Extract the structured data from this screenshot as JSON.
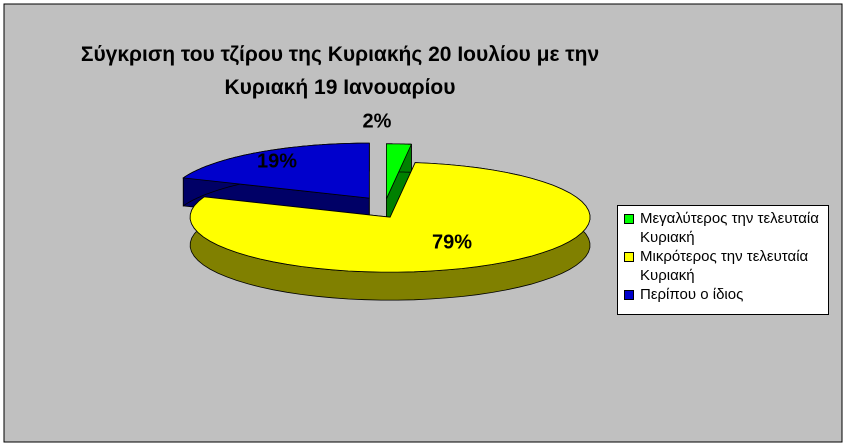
{
  "chart_data": {
    "type": "pie3d",
    "title": "Σύγκριση του τζίρου της Κυριακής 20 Ιουλίου με την Κυριακή 19 Ιανουαρίου",
    "categories": [
      "Μεγαλύτερος την τελευταία Κυριακή",
      "Μικρότερος την τελευταία Κυριακή",
      "Περίπου ο ίδιος"
    ],
    "values": [
      2,
      79,
      19
    ],
    "value_labels": [
      "2%",
      "79%",
      "19%"
    ],
    "colors": [
      "#00ff00",
      "#ffff00",
      "#0000cc"
    ],
    "legend": "right"
  }
}
